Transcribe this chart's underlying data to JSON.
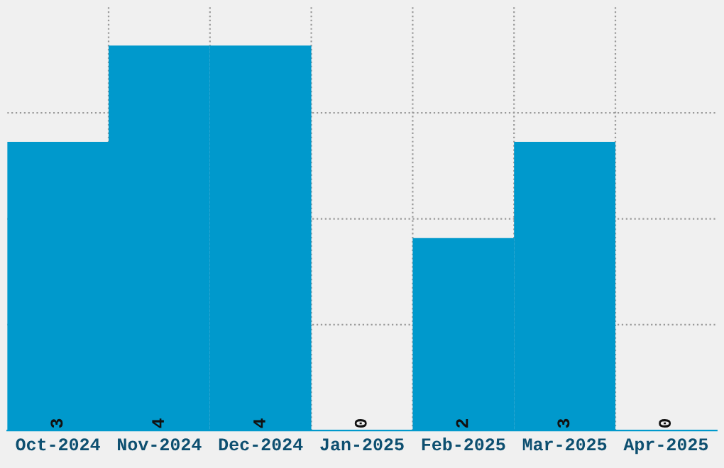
{
  "chart_data": {
    "type": "bar",
    "categories": [
      "Oct-2024",
      "Nov-2024",
      "Dec-2024",
      "Jan-2025",
      "Feb-2025",
      "Mar-2025",
      "Apr-2025"
    ],
    "values": [
      3,
      4,
      4,
      0,
      2,
      3,
      0
    ],
    "color": "#0099cc",
    "data_labels": true,
    "ylim": [
      0,
      4.4
    ],
    "yticks": [
      {
        "value": 1.1,
        "label": null
      },
      {
        "value": 2.2,
        "label": null
      },
      {
        "value": 3.3,
        "label": null
      }
    ],
    "grid": true,
    "tick_labels": "x"
  }
}
